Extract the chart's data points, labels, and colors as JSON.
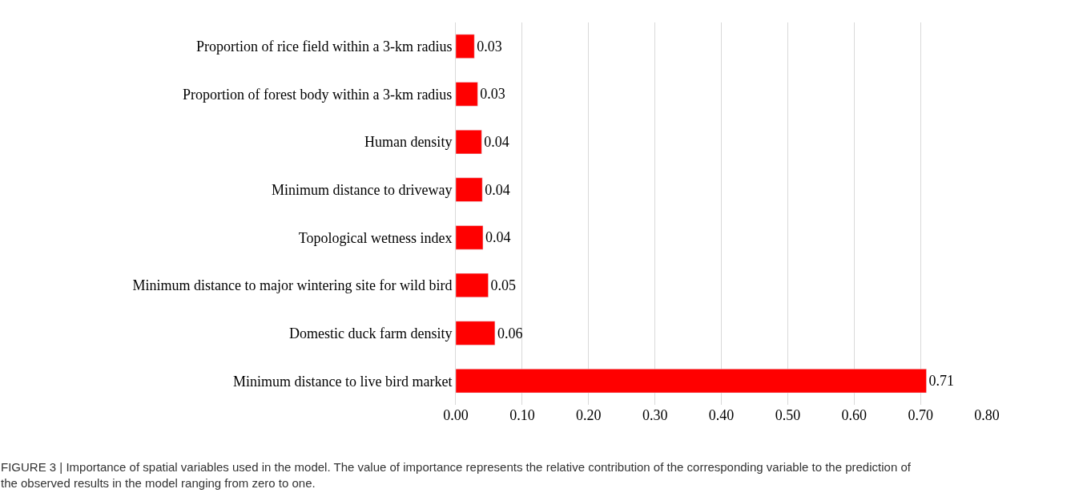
{
  "chart_data": {
    "type": "bar",
    "orientation": "horizontal",
    "categories": [
      "Proportion of rice field within a 3-km radius",
      "Proportion of forest body within a 3-km radius",
      "Human density",
      "Minimum distance to driveway",
      "Topological wetness index",
      "Minimum distance to major wintering site for wild bird",
      "Domestic duck farm density",
      "Minimum distance to live bird market"
    ],
    "values": [
      0.028,
      0.033,
      0.039,
      0.04,
      0.041,
      0.049,
      0.059,
      0.709
    ],
    "value_labels": [
      "0.03",
      "0.03",
      "0.04",
      "0.04",
      "0.04",
      "0.05",
      "0.06",
      "0.71"
    ],
    "color": "#ff0000",
    "xlim": [
      0,
      0.8
    ],
    "xticks": [
      {
        "value": 0,
        "label": "0.00"
      },
      {
        "value": 0.1,
        "label": "0.10"
      },
      {
        "value": 0.2,
        "label": "0.20"
      },
      {
        "value": 0.3,
        "label": "0.30"
      },
      {
        "value": 0.4,
        "label": "0.40"
      },
      {
        "value": 0.5,
        "label": "0.50"
      },
      {
        "value": 0.6,
        "label": "0.60"
      },
      {
        "value": 0.7,
        "label": "0.70"
      },
      {
        "value": 0.8,
        "label": "0.80"
      }
    ],
    "grid": "x",
    "annotations": [
      "FIGURE 3 | Importance of spatial variables used in the model. The value of importance represents the relative contribution of the corresponding variable to the prediction of the observed results in the model ranging from zero to one."
    ]
  }
}
